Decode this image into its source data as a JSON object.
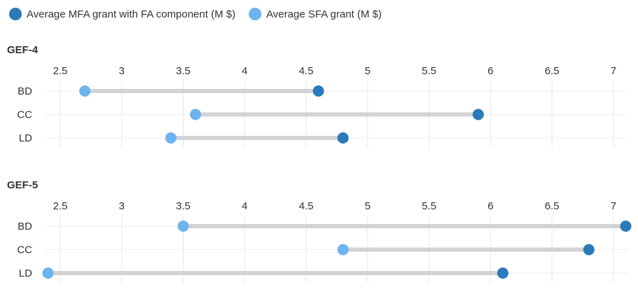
{
  "chart_data": [
    {
      "type": "dumbbell",
      "title": "GEF-4",
      "categories": [
        "BD",
        "CC",
        "LD"
      ],
      "series": [
        {
          "name": "Average MFA grant with FA component (M $)",
          "color": "#2a7ab9",
          "values": [
            4.6,
            5.9,
            4.8
          ]
        },
        {
          "name": "Average SFA grant (M $)",
          "color": "#6cb3f0",
          "values": [
            2.7,
            3.6,
            3.4
          ]
        }
      ],
      "xlim": [
        2.38,
        7.12
      ],
      "xticks": [
        2.5,
        3,
        3.5,
        4,
        4.5,
        5,
        5.5,
        6,
        6.5,
        7
      ],
      "grid": true
    },
    {
      "type": "dumbbell",
      "title": "GEF-5",
      "categories": [
        "BD",
        "CC",
        "LD"
      ],
      "series": [
        {
          "name": "Average MFA grant with FA component (M $)",
          "color": "#2a7ab9",
          "values": [
            7.1,
            6.8,
            6.1
          ]
        },
        {
          "name": "Average SFA grant (M $)",
          "color": "#6cb3f0",
          "values": [
            3.5,
            4.8,
            2.4
          ]
        }
      ],
      "xlim": [
        2.38,
        7.12
      ],
      "xticks": [
        2.5,
        3,
        3.5,
        4,
        4.5,
        5,
        5.5,
        6,
        6.5,
        7
      ],
      "grid": true
    }
  ]
}
